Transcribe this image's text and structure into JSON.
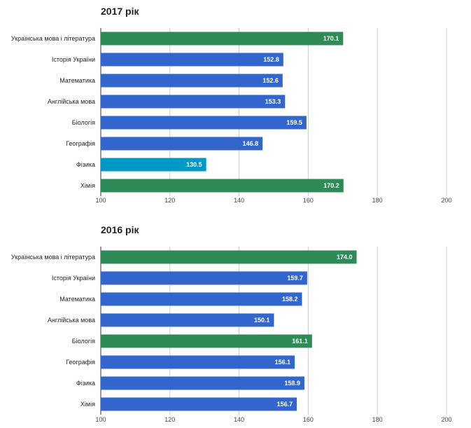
{
  "chart_data": [
    {
      "type": "bar",
      "orientation": "horizontal",
      "title": "2017 рік",
      "categories": [
        "Українська мова і література",
        "Історія України",
        "Математика",
        "Англійська мова",
        "Біологія",
        "Географія",
        "Фізика",
        "Хімія"
      ],
      "values": [
        170.1,
        152.8,
        152.6,
        153.3,
        159.5,
        146.8,
        130.5,
        170.2
      ],
      "value_labels": [
        "170.1",
        "152.8",
        "152.6",
        "153.3",
        "159.5",
        "146.8",
        "130.5",
        "170.2"
      ],
      "colors": [
        "#2e8b57",
        "#3366cc",
        "#3366cc",
        "#3366cc",
        "#3366cc",
        "#3366cc",
        "#0099c6",
        "#2e8b57"
      ],
      "xlim": [
        100,
        200
      ],
      "xticks": [
        100,
        120,
        140,
        160,
        180,
        200
      ],
      "xtick_labels": [
        "100",
        "120",
        "140",
        "160",
        "180",
        "200"
      ],
      "grid": true
    },
    {
      "type": "bar",
      "orientation": "horizontal",
      "title": "2016 рік",
      "categories": [
        "Українська мова і література",
        "Історія України",
        "Математика",
        "Англійська мова",
        "Біологія",
        "Географія",
        "Фізика",
        "Хімія"
      ],
      "values": [
        174.0,
        159.7,
        158.2,
        150.1,
        161.1,
        156.1,
        158.9,
        156.7
      ],
      "value_labels": [
        "174.0",
        "159.7",
        "158.2",
        "150.1",
        "161.1",
        "156.1",
        "158.9",
        "156.7"
      ],
      "colors": [
        "#2e8b57",
        "#3366cc",
        "#3366cc",
        "#3366cc",
        "#2e8b57",
        "#3366cc",
        "#3366cc",
        "#3366cc"
      ],
      "xlim": [
        100,
        200
      ],
      "xticks": [
        100,
        120,
        140,
        160,
        180,
        200
      ],
      "xtick_labels": [
        "100",
        "120",
        "140",
        "160",
        "180",
        "200"
      ],
      "grid": true
    }
  ]
}
